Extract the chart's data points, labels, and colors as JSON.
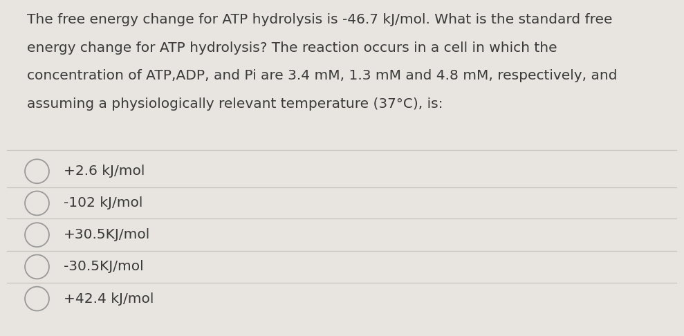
{
  "background_color": "#e8e4df",
  "content_bg_color": "#f0ece6",
  "question_text_line1": "The free energy change for ATP hydrolysis is -46.7 kJ/mol. What is the standard free",
  "question_text_line2": "energy change for ATP hydrolysis? The reaction occurs in a cell in which the",
  "question_text_line3": "concentration of ATP,ADP, and Pi are 3.4 mM, 1.3 mM and 4.8 mM, respectively, and",
  "question_text_line4": "assuming a physiologically relevant temperature (37°C), is:",
  "options": [
    "+2.6 kJ/mol",
    "-102 kJ/mol",
    "+30.5KJ/mol",
    "-30.5KJ/mol",
    "+42.4 kJ/mol"
  ],
  "text_color": "#3a3a3a",
  "option_text_color": "#3a3a3a",
  "circle_color": "#999999",
  "separator_color": "#c8c4be",
  "question_font_size": 14.5,
  "option_font_size": 14.5,
  "figsize": [
    9.89,
    4.86
  ],
  "dpi": 100
}
